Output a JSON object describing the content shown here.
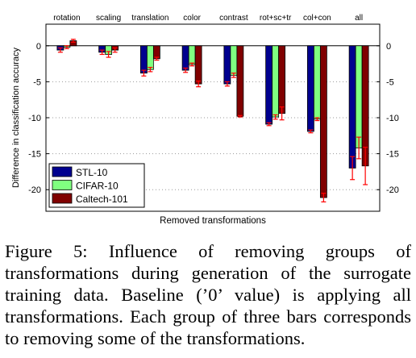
{
  "chart_data": {
    "type": "bar",
    "title": "",
    "xlabel": "Removed transformations",
    "ylabel": "Difference in classification accuracy",
    "categories": [
      "rotation",
      "scaling",
      "translation",
      "color",
      "contrast",
      "rot+sc+tr",
      "col+con",
      "all"
    ],
    "ylim": [
      -23,
      3
    ],
    "yticks": [
      0,
      -5,
      -10,
      -15,
      -20
    ],
    "ytick_labels": [
      "0",
      "-5",
      "-10",
      "-15",
      "-20"
    ],
    "grid": "horizontal dotted",
    "legend_position": "bottom-left",
    "series": [
      {
        "name": "STL-10",
        "color": "#00008f",
        "values": [
          -0.6,
          -0.9,
          -3.8,
          -3.4,
          -5.3,
          -10.9,
          -11.9,
          -17.0
        ],
        "errors": [
          0.3,
          0.3,
          0.4,
          0.3,
          0.3,
          0.2,
          0.2,
          1.6
        ]
      },
      {
        "name": "CIFAR-10",
        "color": "#80ff80",
        "values": [
          -0.2,
          -1.2,
          -3.3,
          -2.6,
          -4.1,
          -9.9,
          -10.2,
          -14.2
        ],
        "errors": [
          0.2,
          0.4,
          0.3,
          0.2,
          0.3,
          0.3,
          0.2,
          1.5
        ]
      },
      {
        "name": "Caltech-101",
        "color": "#800000",
        "values": [
          0.7,
          -0.6,
          -1.8,
          -5.3,
          -9.8,
          -9.4,
          -21.1,
          -16.7
        ],
        "errors": [
          0.2,
          0.3,
          0.2,
          0.4,
          0.1,
          0.9,
          0.6,
          2.6
        ]
      }
    ],
    "errorbar_color": "#ff0000"
  },
  "caption": {
    "text": "Figure 5: Influence of removing groups of transformations during generation of the surrogate training data. Baseline (’0’ value) is applying all transformations. Each group of three bars corresponds to removing some of the transformations."
  }
}
